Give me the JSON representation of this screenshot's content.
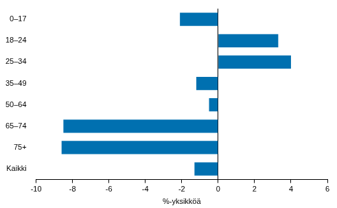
{
  "chart_data": {
    "type": "bar",
    "orientation": "horizontal",
    "categories": [
      "0–17",
      "18–24",
      "25–34",
      "35–49",
      "50–64",
      "65–74",
      "75+",
      "Kaikki"
    ],
    "values": [
      -2.1,
      3.3,
      4.0,
      -1.2,
      -0.5,
      -8.5,
      -8.6,
      -1.3
    ],
    "color": "#0070b0",
    "x_label": "%-yksikköä",
    "xlim": [
      -10,
      6
    ],
    "xticks": [
      -10,
      -8,
      -6,
      -4,
      -2,
      0,
      2,
      4,
      6
    ],
    "grid": false
  }
}
